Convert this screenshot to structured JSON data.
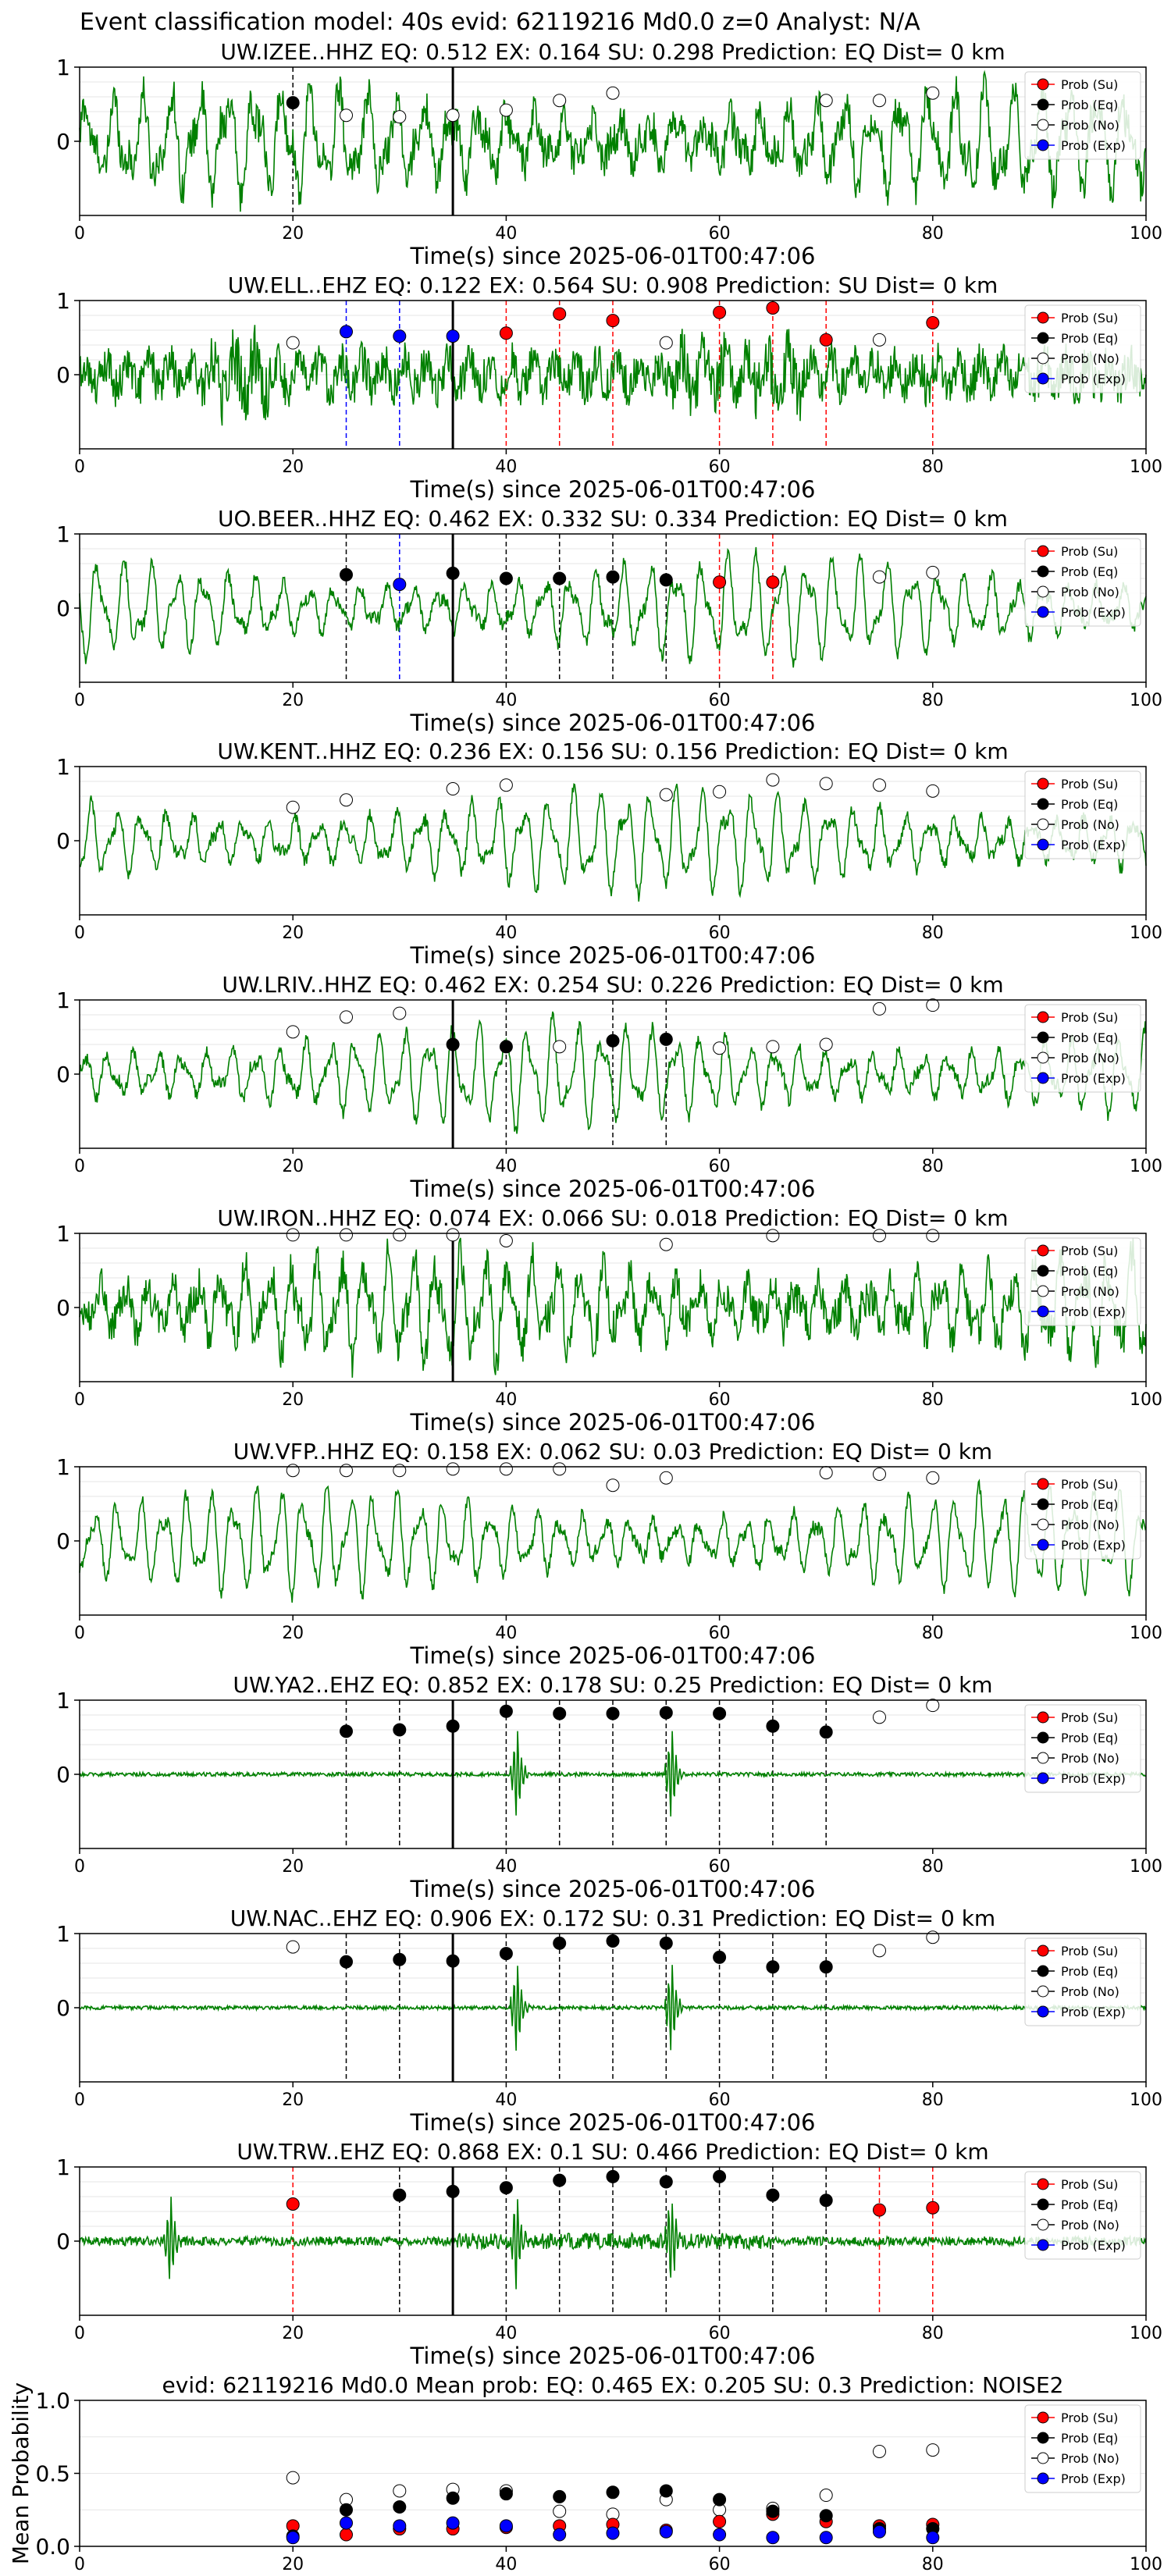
{
  "figure_title": "Event classification model: 40s evid: 62119216 Md0.0 z=0 Analyst: N/A",
  "legend_labels": [
    "Prob (Su)",
    "Prob (Eq)",
    "Prob (No)",
    "Prob (Exp)"
  ],
  "colors": {
    "waveform": "#008000",
    "su": "#ff0000",
    "eq": "#000000",
    "no": "#ffffff",
    "exp": "#0000ff",
    "pick_line": "#000000"
  },
  "chart_data": [
    {
      "type": "line",
      "station": "UW.IZEE..HHZ",
      "title": "UW.IZEE..HHZ   EQ: 0.512  EX: 0.164  SU: 0.298   Prediction: EQ    Dist= 0 km",
      "xlabel": "Time(s) since 2025-06-01T00:47:06",
      "xlim": [
        0,
        100
      ],
      "ylim": [
        -1,
        1
      ],
      "xticks": [
        0,
        20,
        40,
        60,
        80,
        100
      ],
      "yticks": [
        1,
        0
      ],
      "grid": true,
      "waveform_style": "mixed",
      "pick_time": 35,
      "eq": [
        [
          20,
          0.52
        ]
      ],
      "su": [],
      "exp": [],
      "no": [
        [
          25,
          0.35
        ],
        [
          30,
          0.33
        ],
        [
          35,
          0.35
        ],
        [
          40,
          0.42
        ],
        [
          45,
          0.55
        ],
        [
          50,
          0.65
        ],
        [
          70,
          0.55
        ],
        [
          75,
          0.55
        ],
        [
          80,
          0.65
        ]
      ],
      "vlines": [
        {
          "x": 20,
          "c": "eq"
        }
      ]
    },
    {
      "type": "line",
      "station": "UW.ELL..EHZ",
      "title": "UW.ELL..EHZ   EQ: 0.122  EX: 0.564  SU: 0.908   Prediction: SU    Dist= 0 km",
      "xlabel": "Time(s) since 2025-06-01T00:47:06",
      "xlim": [
        0,
        100
      ],
      "ylim": [
        -1,
        1
      ],
      "xticks": [
        0,
        20,
        40,
        60,
        80,
        100
      ],
      "yticks": [
        1,
        0
      ],
      "grid": true,
      "waveform_style": "noise",
      "pick_time": 35,
      "eq": [],
      "exp": [
        [
          25,
          0.58
        ],
        [
          30,
          0.52
        ],
        [
          35,
          0.52
        ]
      ],
      "su": [
        [
          40,
          0.56
        ],
        [
          45,
          0.82
        ],
        [
          50,
          0.73
        ],
        [
          60,
          0.84
        ],
        [
          65,
          0.9
        ],
        [
          70,
          0.47
        ],
        [
          80,
          0.7
        ]
      ],
      "no": [
        [
          20,
          0.43
        ],
        [
          55,
          0.43
        ],
        [
          75,
          0.47
        ]
      ],
      "vlines": [
        {
          "x": 25,
          "c": "exp"
        },
        {
          "x": 30,
          "c": "exp"
        },
        {
          "x": 40,
          "c": "su"
        },
        {
          "x": 45,
          "c": "su"
        },
        {
          "x": 50,
          "c": "su"
        },
        {
          "x": 60,
          "c": "su"
        },
        {
          "x": 65,
          "c": "su"
        },
        {
          "x": 70,
          "c": "su"
        },
        {
          "x": 80,
          "c": "su"
        }
      ]
    },
    {
      "type": "line",
      "station": "UO.BEER..HHZ",
      "title": "UO.BEER..HHZ   EQ: 0.462  EX: 0.332  SU: 0.334   Prediction: EQ    Dist= 0 km",
      "xlabel": "Time(s) since 2025-06-01T00:47:06",
      "xlim": [
        0,
        100
      ],
      "ylim": [
        -1,
        1
      ],
      "xticks": [
        0,
        20,
        40,
        60,
        80,
        100
      ],
      "yticks": [
        1,
        0
      ],
      "grid": true,
      "waveform_style": "wave",
      "pick_time": 35,
      "eq": [
        [
          25,
          0.45
        ],
        [
          35,
          0.47
        ],
        [
          40,
          0.4
        ],
        [
          45,
          0.4
        ],
        [
          50,
          0.42
        ],
        [
          55,
          0.38
        ]
      ],
      "exp": [
        [
          30,
          0.32
        ]
      ],
      "su": [
        [
          60,
          0.35
        ],
        [
          65,
          0.35
        ]
      ],
      "no": [
        [
          75,
          0.42
        ],
        [
          80,
          0.48
        ]
      ],
      "vlines": [
        {
          "x": 25,
          "c": "eq"
        },
        {
          "x": 30,
          "c": "exp"
        },
        {
          "x": 40,
          "c": "eq"
        },
        {
          "x": 45,
          "c": "eq"
        },
        {
          "x": 50,
          "c": "eq"
        },
        {
          "x": 55,
          "c": "eq"
        },
        {
          "x": 60,
          "c": "su"
        },
        {
          "x": 65,
          "c": "su"
        }
      ]
    },
    {
      "type": "line",
      "station": "UW.KENT..HHZ",
      "title": "UW.KENT..HHZ   EQ: 0.236  EX: 0.156  SU: 0.156   Prediction: EQ    Dist= 0 km",
      "xlabel": "Time(s) since 2025-06-01T00:47:06",
      "xlim": [
        0,
        100
      ],
      "ylim": [
        -1,
        1
      ],
      "xticks": [
        0,
        20,
        40,
        60,
        80,
        100
      ],
      "yticks": [
        1,
        0
      ],
      "grid": true,
      "waveform_style": "wave",
      "pick_time": null,
      "eq": [],
      "exp": [],
      "su": [],
      "no": [
        [
          20,
          0.45
        ],
        [
          25,
          0.55
        ],
        [
          35,
          0.7
        ],
        [
          40,
          0.75
        ],
        [
          55,
          0.62
        ],
        [
          60,
          0.66
        ],
        [
          65,
          0.82
        ],
        [
          70,
          0.77
        ],
        [
          75,
          0.75
        ],
        [
          80,
          0.67
        ]
      ],
      "vlines": []
    },
    {
      "type": "line",
      "station": "UW.LRIV..HHZ",
      "title": "UW.LRIV..HHZ   EQ: 0.462  EX: 0.254  SU: 0.226   Prediction: EQ    Dist= 0 km",
      "xlabel": "Time(s) since 2025-06-01T00:47:06",
      "xlim": [
        0,
        100
      ],
      "ylim": [
        -1,
        1
      ],
      "xticks": [
        0,
        20,
        40,
        60,
        80,
        100
      ],
      "yticks": [
        1,
        0
      ],
      "grid": true,
      "waveform_style": "wave",
      "pick_time": 35,
      "eq": [
        [
          35,
          0.4
        ],
        [
          40,
          0.37
        ],
        [
          50,
          0.45
        ],
        [
          55,
          0.47
        ]
      ],
      "exp": [],
      "su": [],
      "no": [
        [
          20,
          0.57
        ],
        [
          25,
          0.77
        ],
        [
          30,
          0.82
        ],
        [
          45,
          0.37
        ],
        [
          60,
          0.35
        ],
        [
          65,
          0.37
        ],
        [
          70,
          0.4
        ],
        [
          75,
          0.88
        ],
        [
          80,
          0.93
        ]
      ],
      "vlines": [
        {
          "x": 40,
          "c": "eq"
        },
        {
          "x": 50,
          "c": "eq"
        },
        {
          "x": 55,
          "c": "eq"
        }
      ]
    },
    {
      "type": "line",
      "station": "UW.IRON..HHZ",
      "title": "UW.IRON..HHZ   EQ: 0.074  EX: 0.066  SU: 0.018   Prediction: EQ    Dist= 0 km",
      "xlabel": "Time(s) since 2025-06-01T00:47:06",
      "xlim": [
        0,
        100
      ],
      "ylim": [
        -1,
        1
      ],
      "xticks": [
        0,
        20,
        40,
        60,
        80,
        100
      ],
      "yticks": [
        1,
        0
      ],
      "grid": true,
      "waveform_style": "mixed",
      "pick_time": 35,
      "eq": [],
      "exp": [],
      "su": [],
      "no": [
        [
          20,
          0.98
        ],
        [
          25,
          0.98
        ],
        [
          30,
          0.98
        ],
        [
          35,
          0.98
        ],
        [
          40,
          0.9
        ],
        [
          55,
          0.85
        ],
        [
          65,
          0.97
        ],
        [
          75,
          0.97
        ],
        [
          80,
          0.97
        ]
      ],
      "vlines": []
    },
    {
      "type": "line",
      "station": "UW.VFP..HHZ",
      "title": "UW.VFP..HHZ   EQ: 0.158  EX: 0.062  SU: 0.03   Prediction: EQ    Dist= 0 km",
      "xlabel": "Time(s) since 2025-06-01T00:47:06",
      "xlim": [
        0,
        100
      ],
      "ylim": [
        -1,
        1
      ],
      "xticks": [
        0,
        20,
        40,
        60,
        80,
        100
      ],
      "yticks": [
        1,
        0
      ],
      "grid": true,
      "waveform_style": "wave",
      "pick_time": null,
      "eq": [],
      "exp": [],
      "su": [],
      "no": [
        [
          20,
          0.95
        ],
        [
          25,
          0.95
        ],
        [
          30,
          0.95
        ],
        [
          35,
          0.97
        ],
        [
          40,
          0.97
        ],
        [
          45,
          0.97
        ],
        [
          50,
          0.75
        ],
        [
          55,
          0.85
        ],
        [
          70,
          0.92
        ],
        [
          75,
          0.9
        ],
        [
          80,
          0.85
        ]
      ],
      "vlines": []
    },
    {
      "type": "line",
      "station": "UW.YA2..EHZ",
      "title": "UW.YA2..EHZ   EQ: 0.852  EX: 0.178  SU: 0.25   Prediction: EQ    Dist= 0 km",
      "xlabel": "Time(s) since 2025-06-01T00:47:06",
      "xlim": [
        0,
        100
      ],
      "ylim": [
        -1,
        1
      ],
      "xticks": [
        0,
        20,
        40,
        60,
        80,
        100
      ],
      "yticks": [
        1,
        0
      ],
      "grid": true,
      "waveform_style": "flat",
      "spikes": [
        41,
        55.5
      ],
      "pick_time": 35,
      "eq": [
        [
          25,
          0.58
        ],
        [
          30,
          0.6
        ],
        [
          35,
          0.65
        ],
        [
          40,
          0.85
        ],
        [
          45,
          0.82
        ],
        [
          50,
          0.82
        ],
        [
          55,
          0.83
        ],
        [
          60,
          0.82
        ],
        [
          65,
          0.65
        ],
        [
          70,
          0.57
        ]
      ],
      "exp": [],
      "su": [],
      "no": [
        [
          75,
          0.77
        ],
        [
          80,
          0.93
        ]
      ],
      "vlines": [
        {
          "x": 25,
          "c": "eq"
        },
        {
          "x": 30,
          "c": "eq"
        },
        {
          "x": 40,
          "c": "eq"
        },
        {
          "x": 45,
          "c": "eq"
        },
        {
          "x": 50,
          "c": "eq"
        },
        {
          "x": 55,
          "c": "eq"
        },
        {
          "x": 60,
          "c": "eq"
        },
        {
          "x": 65,
          "c": "eq"
        },
        {
          "x": 70,
          "c": "eq"
        }
      ]
    },
    {
      "type": "line",
      "station": "UW.NAC..EHZ",
      "title": "UW.NAC..EHZ   EQ: 0.906  EX: 0.172  SU: 0.31   Prediction: EQ    Dist= 0 km",
      "xlabel": "Time(s) since 2025-06-01T00:47:06",
      "xlim": [
        0,
        100
      ],
      "ylim": [
        -1,
        1
      ],
      "xticks": [
        0,
        20,
        40,
        60,
        80,
        100
      ],
      "yticks": [
        1,
        0
      ],
      "grid": true,
      "waveform_style": "flat",
      "spikes": [
        41,
        55.5
      ],
      "pick_time": 35,
      "eq": [
        [
          25,
          0.62
        ],
        [
          30,
          0.65
        ],
        [
          35,
          0.63
        ],
        [
          40,
          0.73
        ],
        [
          45,
          0.87
        ],
        [
          50,
          0.9
        ],
        [
          55,
          0.87
        ],
        [
          60,
          0.68
        ],
        [
          65,
          0.55
        ],
        [
          70,
          0.55
        ]
      ],
      "exp": [],
      "su": [],
      "no": [
        [
          20,
          0.82
        ],
        [
          75,
          0.77
        ],
        [
          80,
          0.95
        ]
      ],
      "vlines": [
        {
          "x": 25,
          "c": "eq"
        },
        {
          "x": 30,
          "c": "eq"
        },
        {
          "x": 40,
          "c": "eq"
        },
        {
          "x": 45,
          "c": "eq"
        },
        {
          "x": 50,
          "c": "eq"
        },
        {
          "x": 55,
          "c": "eq"
        },
        {
          "x": 60,
          "c": "eq"
        },
        {
          "x": 65,
          "c": "eq"
        },
        {
          "x": 70,
          "c": "eq"
        }
      ]
    },
    {
      "type": "line",
      "station": "UW.TRW..EHZ",
      "title": "UW.TRW..EHZ   EQ: 0.868  EX: 0.1  SU: 0.466   Prediction: EQ    Dist= 0 km",
      "xlabel": "Time(s) since 2025-06-01T00:47:06",
      "xlim": [
        0,
        100
      ],
      "ylim": [
        -1,
        1
      ],
      "xticks": [
        0,
        20,
        40,
        60,
        80,
        100
      ],
      "yticks": [
        1,
        0
      ],
      "grid": true,
      "waveform_style": "lownoise",
      "spikes": [
        8.5,
        41,
        55.5
      ],
      "pick_time": 35,
      "eq": [
        [
          30,
          0.62
        ],
        [
          35,
          0.67
        ],
        [
          40,
          0.72
        ],
        [
          45,
          0.82
        ],
        [
          50,
          0.87
        ],
        [
          55,
          0.8
        ],
        [
          60,
          0.87
        ],
        [
          65,
          0.62
        ],
        [
          70,
          0.55
        ]
      ],
      "exp": [],
      "su": [
        [
          20,
          0.5
        ],
        [
          75,
          0.42
        ],
        [
          80,
          0.45
        ]
      ],
      "no": [],
      "vlines": [
        {
          "x": 20,
          "c": "su"
        },
        {
          "x": 30,
          "c": "eq"
        },
        {
          "x": 40,
          "c": "eq"
        },
        {
          "x": 45,
          "c": "eq"
        },
        {
          "x": 50,
          "c": "eq"
        },
        {
          "x": 55,
          "c": "eq"
        },
        {
          "x": 60,
          "c": "eq"
        },
        {
          "x": 65,
          "c": "eq"
        },
        {
          "x": 70,
          "c": "eq"
        },
        {
          "x": 75,
          "c": "su"
        },
        {
          "x": 80,
          "c": "su"
        }
      ]
    },
    {
      "type": "scatter",
      "station": "",
      "title": "evid: 62119216  Md0.0   Mean prob:   EQ: 0.465  EX: 0.205  SU: 0.3   Prediction: NOISE2",
      "xlabel": "",
      "ylabel": "Mean Probability",
      "xlim": [
        0,
        100
      ],
      "ylim": [
        0,
        1
      ],
      "xticks": [
        0,
        20,
        40,
        60,
        80,
        100
      ],
      "yticks": [
        1.0,
        0.5,
        0.0
      ],
      "grid": true,
      "no": [
        [
          20,
          0.47
        ],
        [
          25,
          0.32
        ],
        [
          30,
          0.38
        ],
        [
          35,
          0.39
        ],
        [
          40,
          0.38
        ],
        [
          45,
          0.24
        ],
        [
          50,
          0.22
        ],
        [
          55,
          0.32
        ],
        [
          60,
          0.25
        ],
        [
          65,
          0.26
        ],
        [
          70,
          0.35
        ],
        [
          75,
          0.65
        ],
        [
          80,
          0.66
        ]
      ],
      "eq": [
        [
          20,
          0.07
        ],
        [
          25,
          0.25
        ],
        [
          30,
          0.27
        ],
        [
          35,
          0.33
        ],
        [
          40,
          0.36
        ],
        [
          45,
          0.34
        ],
        [
          50,
          0.37
        ],
        [
          55,
          0.38
        ],
        [
          60,
          0.32
        ],
        [
          65,
          0.24
        ],
        [
          70,
          0.21
        ],
        [
          75,
          0.12
        ],
        [
          80,
          0.12
        ]
      ],
      "su": [
        [
          20,
          0.14
        ],
        [
          25,
          0.08
        ],
        [
          30,
          0.12
        ],
        [
          35,
          0.12
        ],
        [
          40,
          0.13
        ],
        [
          45,
          0.14
        ],
        [
          50,
          0.15
        ],
        [
          55,
          0.11
        ],
        [
          60,
          0.17
        ],
        [
          65,
          0.22
        ],
        [
          70,
          0.17
        ],
        [
          75,
          0.14
        ],
        [
          80,
          0.15
        ]
      ],
      "exp": [
        [
          20,
          0.06
        ],
        [
          25,
          0.16
        ],
        [
          30,
          0.14
        ],
        [
          35,
          0.16
        ],
        [
          40,
          0.14
        ],
        [
          45,
          0.08
        ],
        [
          50,
          0.09
        ],
        [
          55,
          0.1
        ],
        [
          60,
          0.08
        ],
        [
          65,
          0.06
        ],
        [
          70,
          0.06
        ],
        [
          75,
          0.1
        ],
        [
          80,
          0.06
        ]
      ]
    }
  ]
}
